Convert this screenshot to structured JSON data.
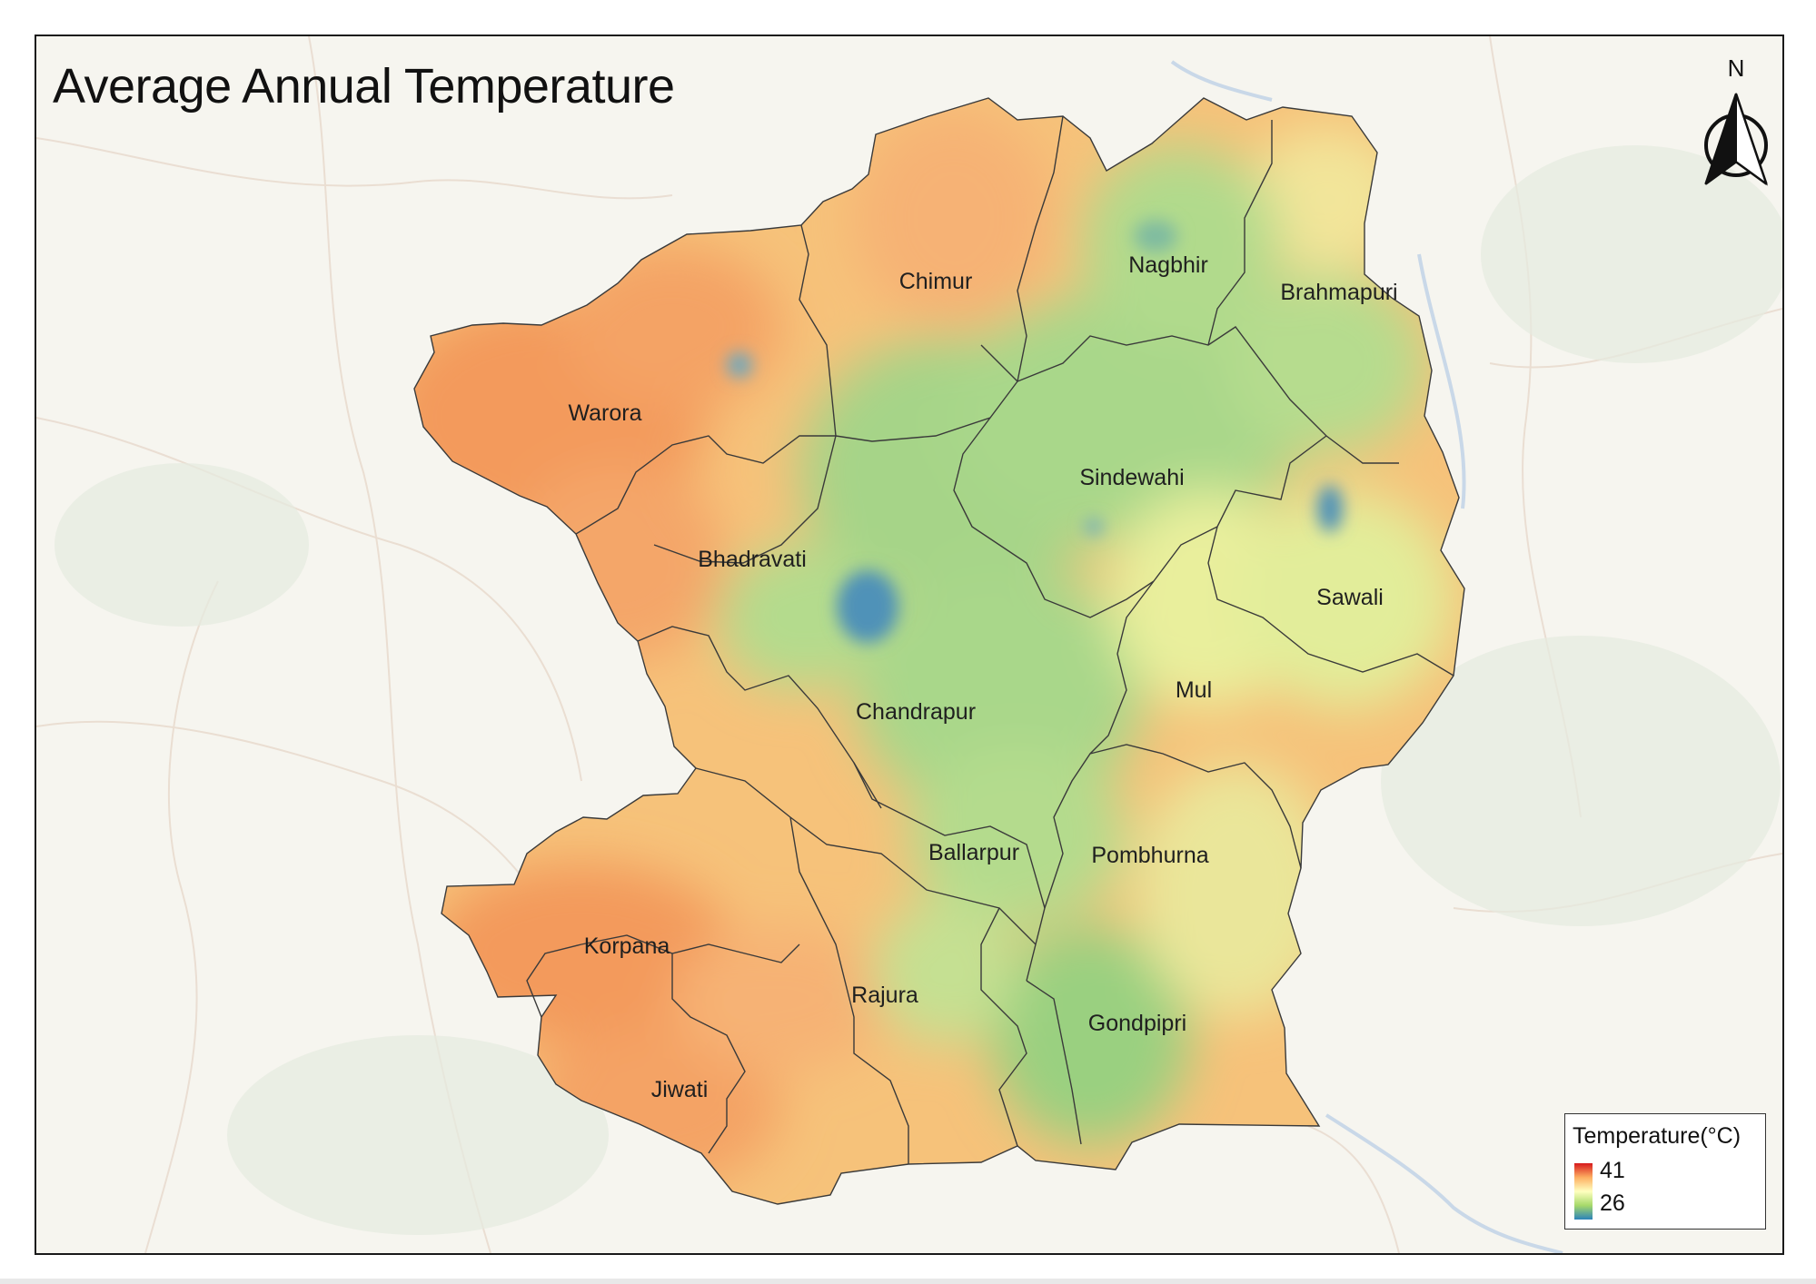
{
  "map": {
    "title": "Average Annual Temperature",
    "north_letter": "N",
    "districts": [
      {
        "id": "chimur",
        "name": "Chimur",
        "temp_class": "warm"
      },
      {
        "id": "nagbhir",
        "name": "Nagbhir",
        "temp_class": "cool"
      },
      {
        "id": "brahmapuri",
        "name": "Brahmapuri",
        "temp_class": "mild"
      },
      {
        "id": "warora",
        "name": "Warora",
        "temp_class": "hot"
      },
      {
        "id": "sindewahi",
        "name": "Sindewahi",
        "temp_class": "cool"
      },
      {
        "id": "bhadravati",
        "name": "Bhadravati",
        "temp_class": "warm"
      },
      {
        "id": "sawali",
        "name": "Sawali",
        "temp_class": "mild"
      },
      {
        "id": "mul",
        "name": "Mul",
        "temp_class": "mild"
      },
      {
        "id": "chandrapur",
        "name": "Chandrapur",
        "temp_class": "cool"
      },
      {
        "id": "ballarpur",
        "name": "Ballarpur",
        "temp_class": "cool"
      },
      {
        "id": "pombhurna",
        "name": "Pombhurna",
        "temp_class": "cool"
      },
      {
        "id": "korpana",
        "name": "Korpana",
        "temp_class": "hot"
      },
      {
        "id": "rajura",
        "name": "Rajura",
        "temp_class": "warm"
      },
      {
        "id": "gondpipri",
        "name": "Gondpipri",
        "temp_class": "cool"
      },
      {
        "id": "jiwati",
        "name": "Jiwati",
        "temp_class": "hot"
      }
    ]
  },
  "legend": {
    "title": "Temperature(°C)",
    "max_label": "41",
    "min_label": "26",
    "max_value": 41,
    "min_value": 26,
    "colors": [
      "#d7191c",
      "#fdae61",
      "#ffffbf",
      "#a6d96a",
      "#2b83ba"
    ]
  },
  "palette": {
    "hot": "#f39a5c",
    "warm": "#f6c27a",
    "mild": "#e9ef9c",
    "cool": "#a9d78a",
    "cold_spot": "#4f92b8",
    "basemap": "#f6f5ef",
    "river": "#c9d8e8",
    "boundary": "#3a3a3a"
  }
}
